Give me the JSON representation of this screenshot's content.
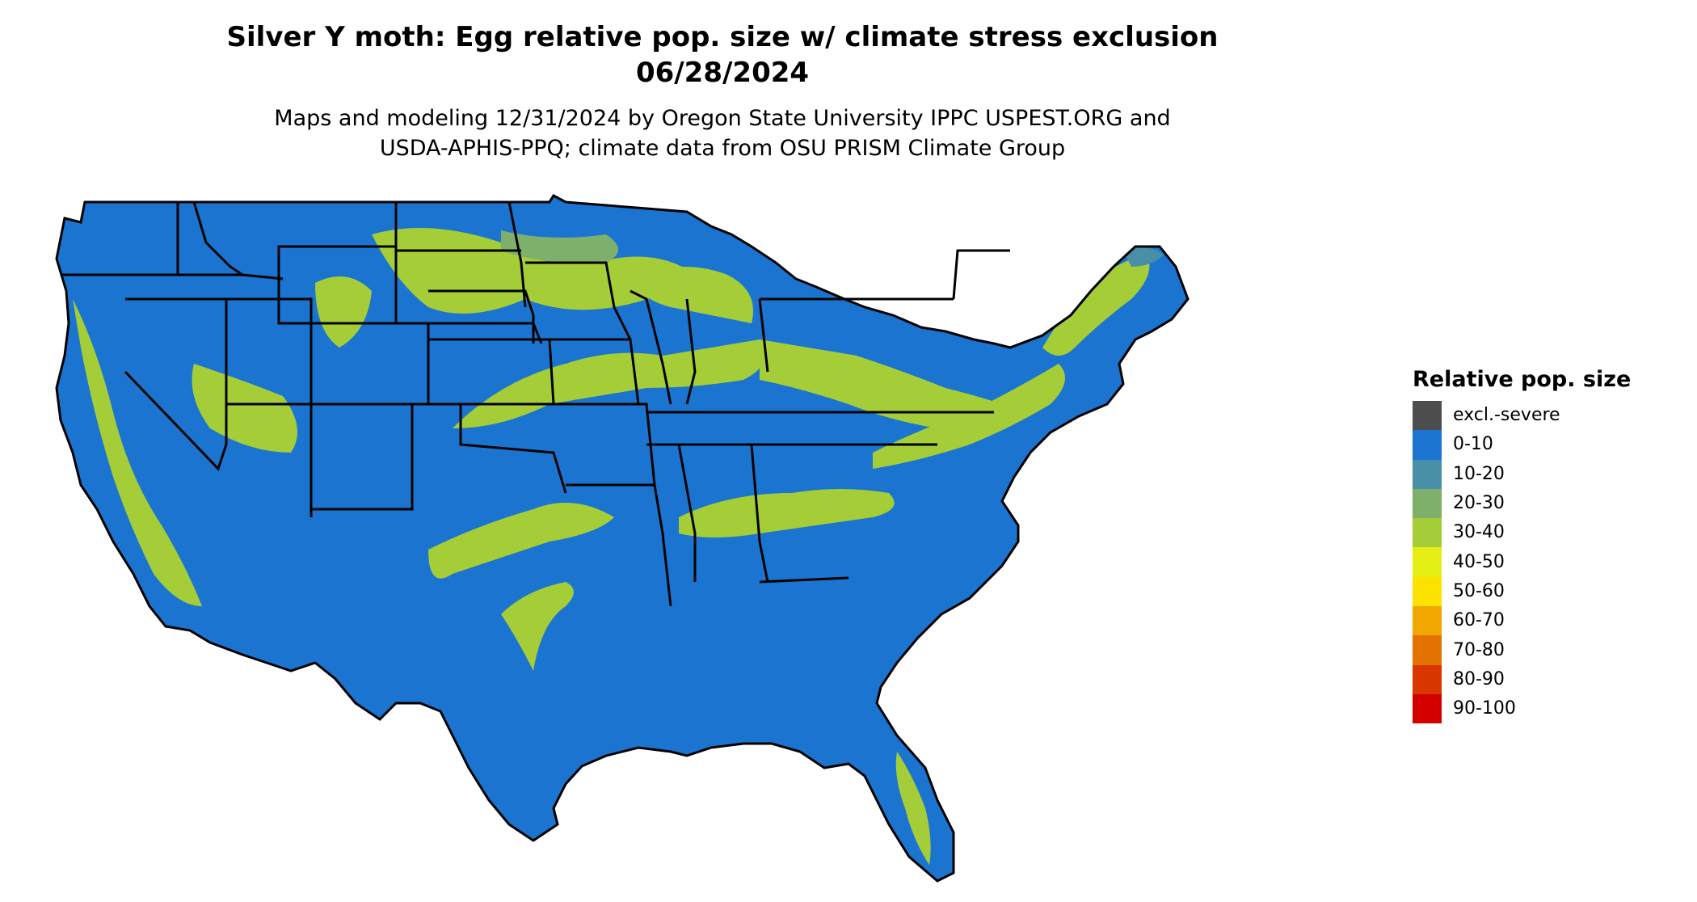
{
  "title": {
    "line1": "Silver Y moth: Egg relative pop. size w/ climate stress exclusion",
    "line2": "06/28/2024"
  },
  "subtitle": {
    "line1": "Maps and modeling 12/31/2024 by Oregon State University IPPC USPEST.ORG and",
    "line2": "USDA-APHIS-PPQ; climate data from OSU PRISM Climate Group"
  },
  "map": {
    "region": "Conterminous United States",
    "base_color": "#1b75d0",
    "band_color": "#a5cd37",
    "mid_band_color": "#7eb06b",
    "border_color": "#000000"
  },
  "legend": {
    "title": "Relative pop. size",
    "items": [
      {
        "label": "excl.-severe",
        "color": "#4d4d4d"
      },
      {
        "label": "0-10",
        "color": "#1b75d0"
      },
      {
        "label": "10-20",
        "color": "#4a8fa8"
      },
      {
        "label": "20-30",
        "color": "#7eb06b"
      },
      {
        "label": "30-40",
        "color": "#a5cd37"
      },
      {
        "label": "40-50",
        "color": "#e5ef16"
      },
      {
        "label": "50-60",
        "color": "#fde101"
      },
      {
        "label": "60-70",
        "color": "#f2a600"
      },
      {
        "label": "70-80",
        "color": "#e47200"
      },
      {
        "label": "80-90",
        "color": "#d93600"
      },
      {
        "label": "90-100",
        "color": "#d40000"
      }
    ]
  }
}
